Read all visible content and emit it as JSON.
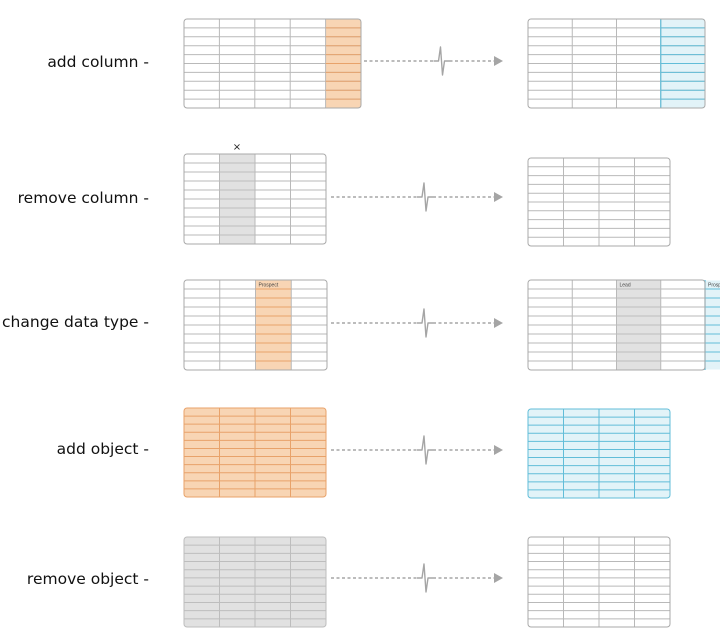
{
  "colors": {
    "grid_line": "#b9b9b9",
    "frame": "#a9a9a9",
    "orange_fill": "#f8d5b4",
    "orange_line": "#e8a26a",
    "blue_fill": "#e2f3f8",
    "blue_line": "#61bdd8",
    "gray_fill": "#e1e1e1",
    "gray_line": "#bdbdbd",
    "connector": "#a5a5a5"
  },
  "rows": [
    {
      "label": "add column -",
      "before": {
        "cols": 5,
        "lines": 10,
        "highlight": [
          {
            "col": 4,
            "style": "orange"
          }
        ]
      },
      "after": {
        "cols": 4,
        "lines": 10,
        "highlight": [
          {
            "col": 3,
            "style": "blue"
          }
        ]
      }
    },
    {
      "label": "remove column -",
      "removed_mark": "×",
      "before": {
        "cols": 4,
        "lines": 10,
        "highlight": [
          {
            "col": 1,
            "style": "gray"
          }
        ]
      },
      "after": {
        "cols": 4,
        "lines": 10,
        "highlight": []
      }
    },
    {
      "label": "change data type -",
      "before": {
        "cols": 4,
        "lines": 10,
        "highlight": [
          {
            "col": 2,
            "style": "orange",
            "header": "Prospect"
          }
        ]
      },
      "after": {
        "cols": 4,
        "lines": 10,
        "highlight": [
          {
            "col": 2,
            "style": "gray",
            "header": "Lead"
          },
          {
            "col": 4,
            "style": "blue",
            "header": "Prospect"
          }
        ]
      }
    },
    {
      "label": "add object -",
      "before": {
        "cols": 4,
        "lines": 11,
        "fill": "orange"
      },
      "after": {
        "cols": 4,
        "lines": 11,
        "fill": "blue"
      }
    },
    {
      "label": "remove object -",
      "before": {
        "cols": 4,
        "lines": 11,
        "fill": "gray"
      },
      "after": {
        "cols": 4,
        "lines": 11,
        "fill": null
      }
    }
  ]
}
